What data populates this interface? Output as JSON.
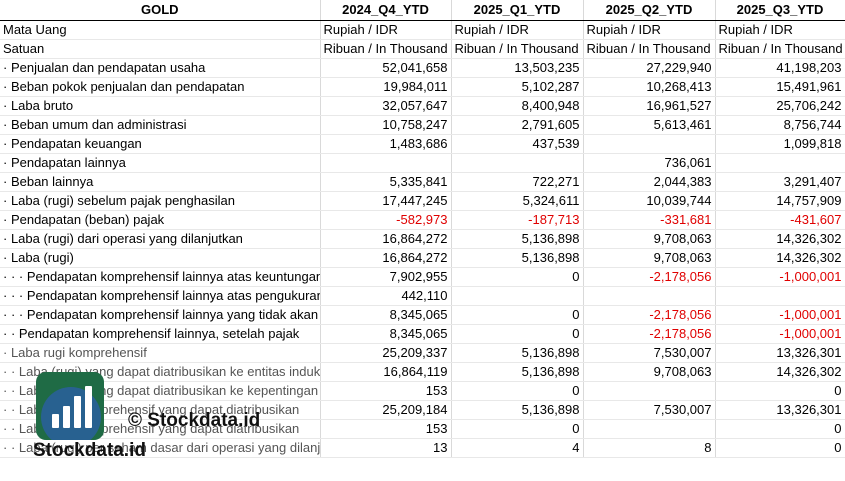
{
  "header": [
    "GOLD",
    "2024_Q4_YTD",
    "2025_Q1_YTD",
    "2025_Q2_YTD",
    "2025_Q3_YTD"
  ],
  "rows": [
    {
      "label": "Mata Uang",
      "vals": [
        "Rupiah / IDR",
        "Rupiah / IDR",
        "Rupiah / IDR",
        "Rupiah / IDR"
      ],
      "type": "meta"
    },
    {
      "label": "Satuan",
      "vals": [
        "Ribuan / In Thousand",
        "Ribuan / In Thousand",
        "Ribuan / In Thousand",
        "Ribuan / In Thousand"
      ],
      "type": "meta"
    },
    {
      "label": "· Penjualan dan pendapatan usaha",
      "vals": [
        "52,041,658",
        "13,503,235",
        "27,229,940",
        "41,198,203"
      ]
    },
    {
      "label": "· Beban pokok penjualan dan pendapatan",
      "vals": [
        "19,984,011",
        "5,102,287",
        "10,268,413",
        "15,491,961"
      ]
    },
    {
      "label": "· Laba bruto",
      "vals": [
        "32,057,647",
        "8,400,948",
        "16,961,527",
        "25,706,242"
      ]
    },
    {
      "label": "· Beban umum dan administrasi",
      "vals": [
        "10,758,247",
        "2,791,605",
        "5,613,461",
        "8,756,744"
      ]
    },
    {
      "label": "· Pendapatan keuangan",
      "vals": [
        "1,483,686",
        "437,539",
        "",
        "1,099,818"
      ]
    },
    {
      "label": "· Pendapatan lainnya",
      "vals": [
        "",
        "",
        "736,061",
        ""
      ]
    },
    {
      "label": "· Beban lainnya",
      "vals": [
        "5,335,841",
        "722,271",
        "2,044,383",
        "3,291,407"
      ]
    },
    {
      "label": "· Laba (rugi) sebelum pajak penghasilan",
      "vals": [
        "17,447,245",
        "5,324,611",
        "10,039,744",
        "14,757,909"
      ]
    },
    {
      "label": "· Pendapatan (beban) pajak",
      "vals": [
        "-582,973",
        "-187,713",
        "-331,681",
        "-431,607"
      ]
    },
    {
      "label": "· Laba (rugi) dari operasi yang dilanjutkan",
      "vals": [
        "16,864,272",
        "5,136,898",
        "9,708,063",
        "14,326,302"
      ]
    },
    {
      "label": "· Laba (rugi)",
      "vals": [
        "16,864,272",
        "5,136,898",
        "9,708,063",
        "14,326,302"
      ]
    },
    {
      "label": "· · · Pendapatan komprehensif lainnya atas keuntungan",
      "vals": [
        "7,902,955",
        "0",
        "-2,178,056",
        "-1,000,001"
      ]
    },
    {
      "label": "· · · Pendapatan komprehensif lainnya atas pengukuran",
      "vals": [
        "442,110",
        "",
        "",
        ""
      ]
    },
    {
      "label": "· · · Pendapatan komprehensif lainnya yang tidak akan",
      "vals": [
        "8,345,065",
        "0",
        "-2,178,056",
        "-1,000,001"
      ]
    },
    {
      "label": "· · Pendapatan komprehensif lainnya, setelah pajak",
      "vals": [
        "8,345,065",
        "0",
        "-2,178,056",
        "-1,000,001"
      ]
    },
    {
      "label": "· Laba rugi komprehensif",
      "vals": [
        "25,209,337",
        "5,136,898",
        "7,530,007",
        "13,326,301"
      ],
      "muted": true
    },
    {
      "label": "· · Laba (rugi) yang dapat diatribusikan ke entitas induk",
      "vals": [
        "16,864,119",
        "5,136,898",
        "9,708,063",
        "14,326,302"
      ],
      "muted": true
    },
    {
      "label": "· · Laba (rugi) yang dapat diatribusikan ke kepentingan",
      "vals": [
        "153",
        "0",
        "",
        "0"
      ],
      "muted": true
    },
    {
      "label": "· · Laba rugi komprehensif yang dapat diatribusikan",
      "vals": [
        "25,209,184",
        "5,136,898",
        "7,530,007",
        "13,326,301"
      ],
      "muted": true
    },
    {
      "label": "· · Laba rugi komprehensif yang dapat diatribusikan",
      "vals": [
        "153",
        "0",
        "",
        "0"
      ],
      "muted": true
    },
    {
      "label": "· · Laba (rugi) per saham dasar dari operasi yang dilanjutkan",
      "vals": [
        "13",
        "4",
        "8",
        "0"
      ],
      "muted": true
    }
  ],
  "watermark": {
    "copyright": "© Stockdata.id",
    "brand": "Stockdata.id"
  },
  "colors": {
    "negative": "#e00000",
    "logo_green": "#1f6b45",
    "logo_blue": "#2a5f9e"
  }
}
